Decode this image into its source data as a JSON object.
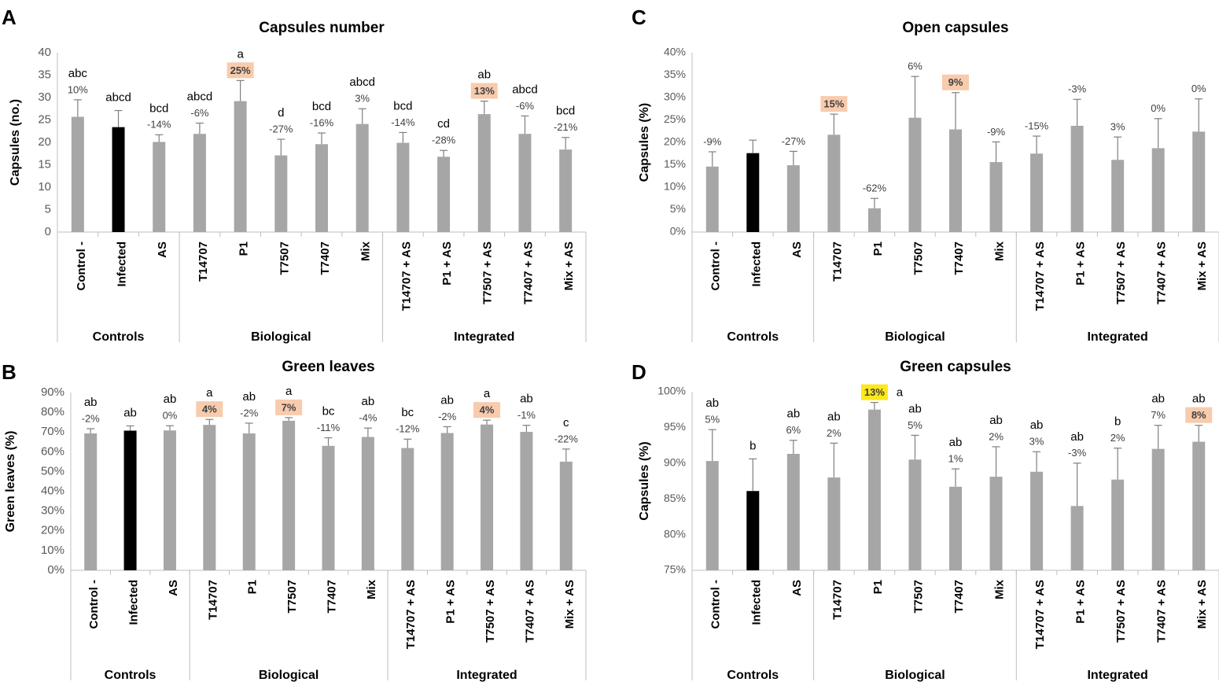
{
  "figure": {
    "colors": {
      "bar": "#a6a6a6",
      "infected_bar": "#000000",
      "error": "#7f7f7f",
      "axis": "#bfbfbf",
      "grid": "#d9d9d9",
      "highlight": "#f8cbad",
      "highlight_strong": "#ffe81a",
      "text": "#000000",
      "pct_text": "#404040"
    },
    "categories": [
      "Control -",
      "Infected",
      "AS",
      "T14707",
      "P1",
      "T7507",
      "T7407",
      "Mix",
      "T14707 + AS",
      "P1 + AS",
      "T7507 + AS",
      "T7407 + AS",
      "Mix + AS"
    ],
    "groups": [
      {
        "name": "Controls",
        "start": 0,
        "end": 2
      },
      {
        "name": "Biological",
        "start": 3,
        "end": 7
      },
      {
        "name": "Integrated",
        "start": 8,
        "end": 12
      }
    ]
  },
  "chart_data": [
    {
      "panel": "A",
      "type": "bar",
      "title": "Capsules number",
      "ylabel": "Capsules (no.)",
      "ylim": [
        0,
        40
      ],
      "ytick_step": 5,
      "ytick_format": "int",
      "grid": false,
      "values": [
        25.7,
        23.4,
        20.1,
        21.9,
        29.2,
        17.1,
        19.6,
        24.1,
        19.9,
        16.8,
        26.3,
        21.9,
        18.4
      ],
      "errors": [
        3.8,
        3.7,
        1.6,
        2.4,
        4.6,
        3.6,
        2.5,
        3.4,
        2.3,
        1.4,
        2.9,
        4.0,
        2.7
      ],
      "letters": [
        "abc",
        "abcd",
        "bcd",
        "abcd",
        "a",
        "d",
        "bcd",
        "abcd",
        "bcd",
        "cd",
        "ab",
        "abcd",
        "bcd"
      ],
      "pcts": [
        "10%",
        "",
        "-14%",
        "-6%",
        "25%",
        "-27%",
        "-16%",
        "3%",
        "-14%",
        "-28%",
        "13%",
        "-6%",
        "-21%"
      ],
      "highlights": [
        "",
        "",
        "",
        "",
        "orange",
        "",
        "",
        "",
        "",
        "",
        "orange",
        "",
        ""
      ]
    },
    {
      "panel": "B",
      "type": "bar",
      "title": "Green leaves",
      "ylabel": "Green leaves (%)",
      "ylim": [
        0,
        90
      ],
      "ytick_step": 10,
      "ytick_format": "pct",
      "grid": false,
      "values": [
        69.3,
        70.7,
        70.8,
        73.6,
        69.3,
        75.7,
        63.0,
        67.5,
        61.9,
        69.5,
        73.8,
        70.1,
        55.0
      ],
      "errors": [
        2.4,
        2.4,
        2.4,
        2.8,
        5.2,
        1.6,
        4.1,
        4.5,
        4.5,
        3.2,
        2.2,
        3.3,
        6.4
      ],
      "letters": [
        "ab",
        "ab",
        "ab",
        "a",
        "ab",
        "a",
        "bc",
        "ab",
        "bc",
        "ab",
        "a",
        "ab",
        "c"
      ],
      "pcts": [
        "-2%",
        "",
        "0%",
        "4%",
        "-2%",
        "7%",
        "-11%",
        "-4%",
        "-12%",
        "-2%",
        "4%",
        "-1%",
        "-22%"
      ],
      "highlights": [
        "",
        "",
        "",
        "orange",
        "",
        "orange",
        "",
        "",
        "",
        "",
        "orange",
        "",
        ""
      ]
    },
    {
      "panel": "C",
      "type": "bar",
      "title": "Open capsules",
      "ylabel": "Capsules (%)",
      "ylim": [
        0,
        40
      ],
      "ytick_step": 5,
      "ytick_format": "pct",
      "grid": false,
      "values": [
        14.6,
        17.6,
        14.9,
        21.7,
        5.3,
        25.5,
        22.9,
        15.6,
        17.5,
        23.7,
        16.1,
        18.7,
        22.4
      ],
      "errors": [
        3.3,
        2.9,
        3.1,
        4.6,
        2.2,
        9.2,
        8.2,
        4.5,
        3.9,
        5.9,
        5.1,
        6.6,
        7.3
      ],
      "letters": [
        "",
        "",
        "",
        "",
        "",
        "",
        "",
        "",
        "",
        "",
        "",
        "",
        ""
      ],
      "pcts": [
        "-9%",
        "",
        "-27%",
        "15%",
        "-62%",
        "6%",
        "9%",
        "-9%",
        "-15%",
        "-3%",
        "3%",
        "0%",
        "0%"
      ],
      "highlights": [
        "",
        "",
        "",
        "orange",
        "",
        "",
        "orange",
        "",
        "",
        "",
        "",
        "",
        ""
      ]
    },
    {
      "panel": "D",
      "type": "bar",
      "title": "Green capsules",
      "ylabel": "Capsules (%)",
      "ylim": [
        75,
        100
      ],
      "ytick_step": 5,
      "ytick_format": "pct",
      "grid": false,
      "values": [
        90.3,
        86.1,
        91.3,
        88.0,
        97.5,
        90.5,
        86.7,
        88.1,
        88.8,
        84.0,
        87.7,
        92.0,
        93.0
      ],
      "errors": [
        4.4,
        4.5,
        1.9,
        4.8,
        1.0,
        3.4,
        2.5,
        4.2,
        2.8,
        6.0,
        4.4,
        3.3,
        2.3
      ],
      "letters": [
        "ab",
        "b",
        "ab",
        "ab",
        "a",
        "ab",
        "ab",
        "ab",
        "ab",
        "ab",
        "b",
        "ab",
        "ab"
      ],
      "pcts": [
        "5%",
        "",
        "6%",
        "2%",
        "13%",
        "5%",
        "1%",
        "2%",
        "3%",
        "-3%",
        "2%",
        "7%",
        "8%"
      ],
      "highlights": [
        "",
        "",
        "",
        "",
        "yellow",
        "",
        "",
        "",
        "",
        "",
        "",
        "",
        "orange"
      ]
    }
  ]
}
